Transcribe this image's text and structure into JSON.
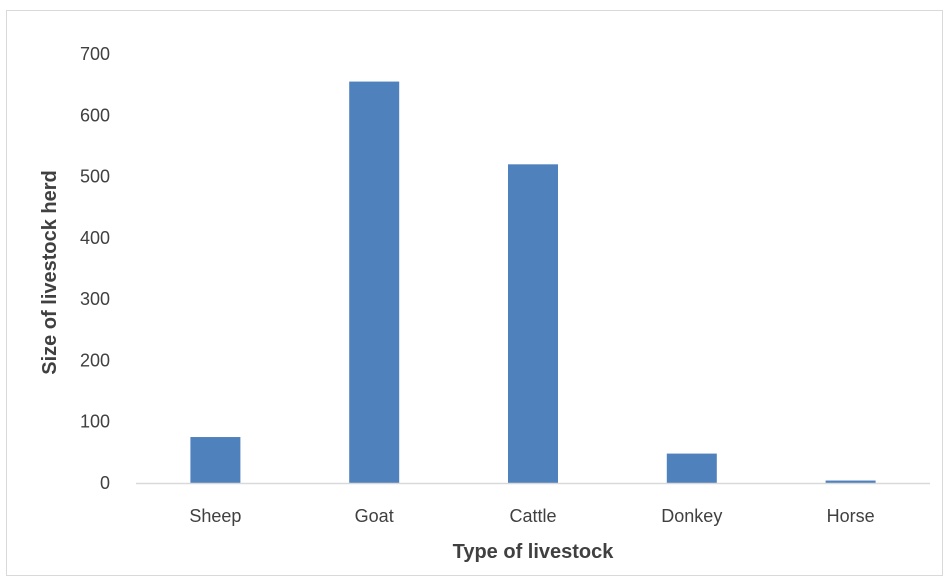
{
  "chart_data": {
    "type": "bar",
    "title": "",
    "xlabel": "Type of livestock",
    "ylabel": "Size of livestock herd",
    "categories": [
      "Sheep",
      "Goat",
      "Cattle",
      "Donkey",
      "Horse"
    ],
    "values": [
      75,
      655,
      520,
      48,
      4
    ],
    "ylim": [
      0,
      700
    ],
    "yticks": [
      0,
      100,
      200,
      300,
      400,
      500,
      600,
      700
    ],
    "grid": false,
    "legend": "none",
    "bar_color": "#4f81bd",
    "axis_color": "#d9d9d9"
  }
}
